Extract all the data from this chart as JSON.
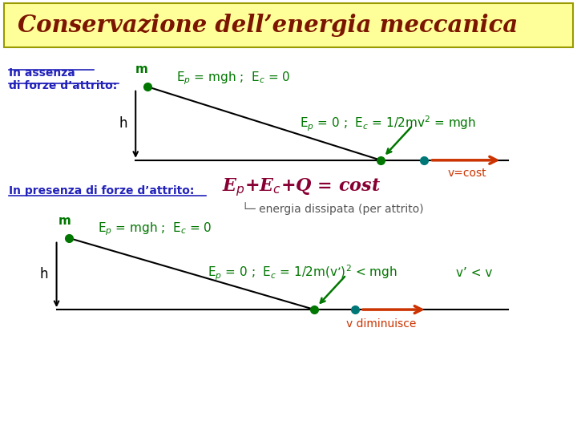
{
  "title": "Conservazione dell’energia meccanica",
  "title_bg": "#FFFF99",
  "title_border": "#999900",
  "title_color": "#7B1500",
  "bg_color": "#FFFFFF",
  "blue_color": "#2222BB",
  "green_color": "#007700",
  "teal_color": "#007777",
  "red_color": "#CC3300",
  "maroon_color": "#880033",
  "section1_line1": "In assenza",
  "section1_line2": "di forze d’attrito:",
  "section2_label": "In presenza di forze d’attrito:",
  "m_label": "m",
  "h_label": "h",
  "eq1_top": "E$_p$ = mgh ;  E$_c$ = 0",
  "eq1_bot": "E$_p$ = 0 ;  E$_c$ = 1/2mv$^2$ = mgh",
  "vcost": "v=cost",
  "eq2_main_1": "E",
  "eq2_main": "E$_p$+E$_c$+Q = cost",
  "eq2_sub": "└─ energia dissipata (per attrito)",
  "eq3_top": "E$_p$ = mgh ;  E$_c$ = 0",
  "eq3_bot": "E$_p$ = 0 ;  E$_c$ = 1/2m(v’)$^2$ < mgh",
  "vlesv": "v’ < v",
  "vdim": "v diminuisce"
}
